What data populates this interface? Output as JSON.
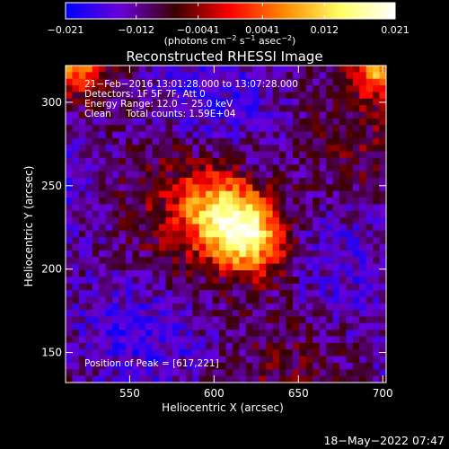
{
  "chart_data": {
    "type": "heatmap",
    "title": "Reconstructed RHESSI Image",
    "xlabel": "Heliocentric X (arcsec)",
    "ylabel": "Heliocentric Y (arcsec)",
    "xlim": [
      512,
      702
    ],
    "ylim": [
      132,
      322
    ],
    "x_ticks": [
      550,
      600,
      650,
      700
    ],
    "y_ticks": [
      150,
      200,
      250,
      300
    ],
    "colorbar": {
      "min": -0.021,
      "max": 0.021,
      "ticks": [
        -0.021,
        -0.012,
        -0.0041,
        0.0041,
        0.012,
        0.021
      ],
      "tick_labels": [
        "−0.021",
        "−0.012",
        "−0.0041",
        "0.0041",
        "0.012",
        "0.021"
      ],
      "label_base": "(photons cm",
      "label_exp1": "−2",
      "label_mid": " s",
      "label_exp2": "−1",
      "label_mid2": " asec",
      "label_exp3": "−2",
      "label_end": ")",
      "colors": [
        "#0000ff",
        "#6a00d8",
        "#3a0000",
        "#ff0000",
        "#ff8c00",
        "#ffff66",
        "#ffffff"
      ]
    },
    "annotations": [
      "21−Feb−2016 13:01:28.000 to 13:07:28.000",
      "Detectors: 1F 5F 7F, Att 0",
      "Energy Range: 12.0 − 25.0 keV",
      "Clean     Total counts: 1.59E+04"
    ],
    "peak_label": "Position of Peak = [617,221]",
    "peak": [
      617,
      221
    ],
    "grid": false
  },
  "footer": {
    "timestamp": "18−May−2022 07:47"
  }
}
